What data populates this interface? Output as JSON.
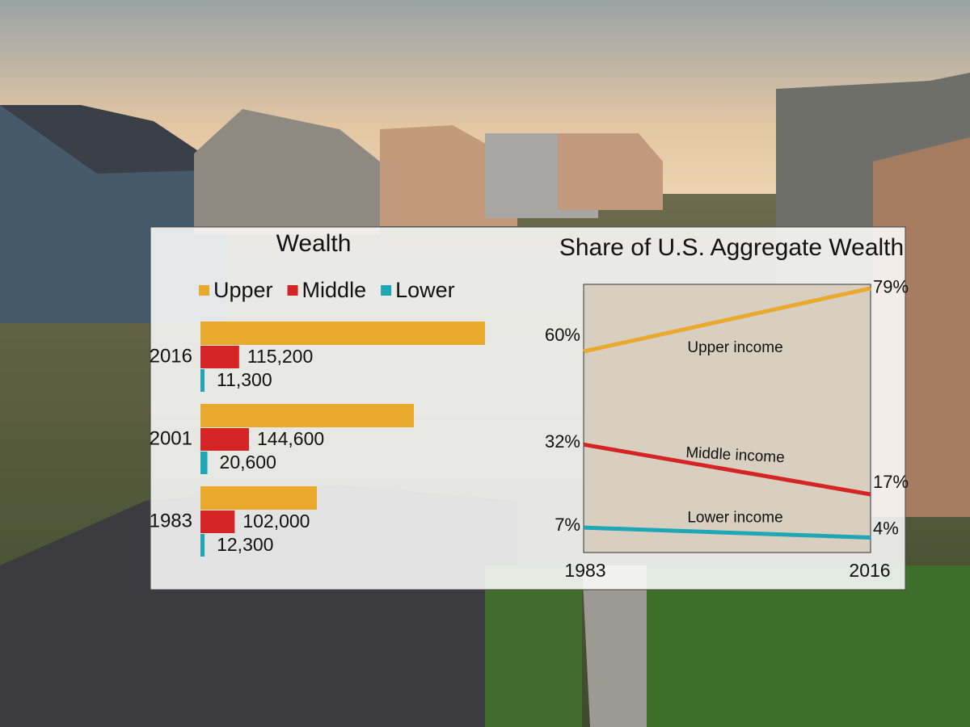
{
  "chart_data": [
    {
      "type": "bar",
      "orientation": "horizontal",
      "title": "Wealth",
      "categories": [
        "2016",
        "2001",
        "1983"
      ],
      "series": [
        {
          "name": "Upper",
          "color": "#e8a92c",
          "values": [
            848000,
            636000,
            347000
          ]
        },
        {
          "name": "Middle",
          "color": "#d42424",
          "values": [
            115200,
            144600,
            102000
          ],
          "value_labels": [
            "115,200",
            "144,600",
            "102,000"
          ]
        },
        {
          "name": "Lower",
          "color": "#1fa7b5",
          "values": [
            11300,
            20600,
            12300
          ],
          "value_labels": [
            "11,300",
            "20,600",
            "12,300"
          ]
        }
      ],
      "legend": "top"
    },
    {
      "type": "line",
      "title": "Share of U.S. Aggregate Wealth",
      "x": [
        1983,
        2016
      ],
      "xlim": [
        1983,
        2016
      ],
      "xticks": [
        1983,
        2016
      ],
      "ylim": [
        -0.5,
        80.2
      ],
      "series": [
        {
          "name": "Upper income",
          "color": "#e8a92c",
          "values": [
            60,
            79
          ],
          "value_labels": [
            "60%",
            "79%"
          ]
        },
        {
          "name": "Middle income",
          "color": "#d42424",
          "values": [
            32,
            17
          ],
          "value_labels": [
            "32%",
            "17%"
          ]
        },
        {
          "name": "Lower income",
          "color": "#1fa7b5",
          "values": [
            7,
            4
          ],
          "value_labels": [
            "7%",
            "4%"
          ]
        }
      ]
    }
  ]
}
